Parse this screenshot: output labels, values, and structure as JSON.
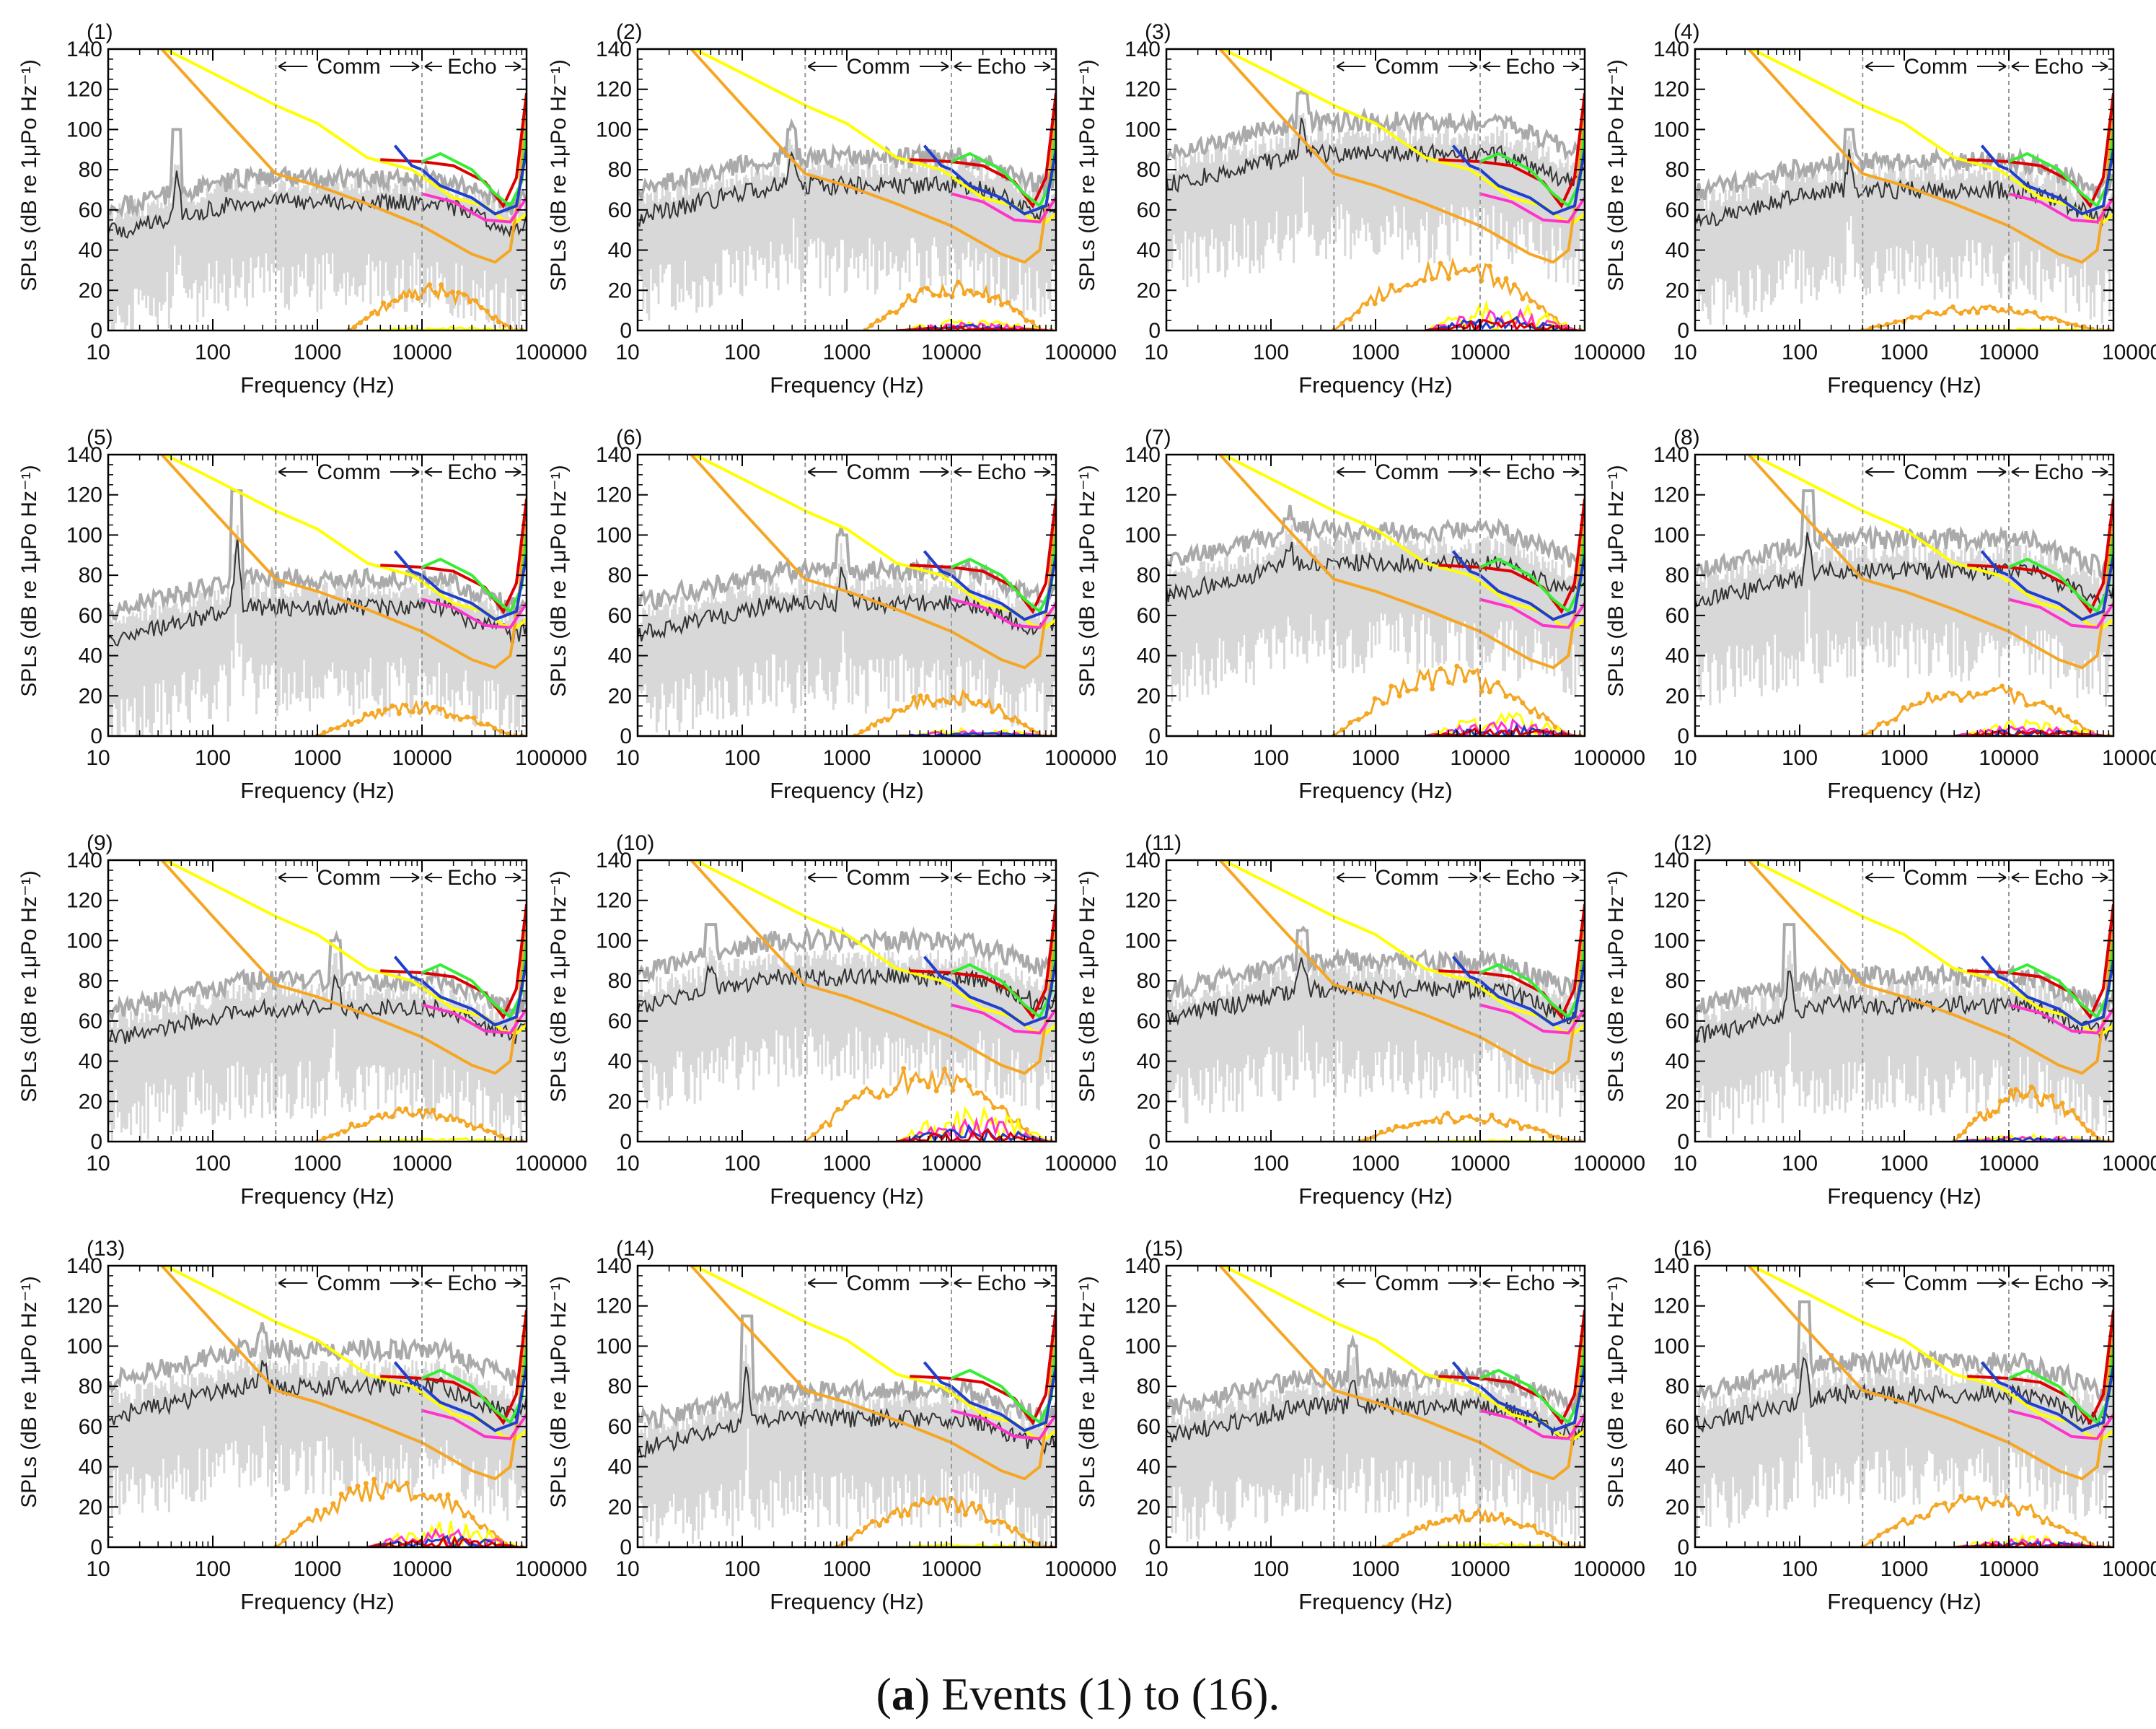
{
  "figure_caption": {
    "label": "(a)",
    "letter": "a",
    "text": "Events (1) to (16)."
  },
  "colors": {
    "frame": "#000000",
    "spread_fill": "#d8d8d8",
    "upper_gray": "#aaaaaa",
    "median_black": "#333333",
    "yellow": "#ffff00",
    "orange": "#f5a623",
    "red": "#dd0000",
    "green": "#33ee33",
    "blue": "#1f3fcc",
    "magenta": "#ff33cc",
    "marker_line": "#999999"
  },
  "shared_axes": {
    "xlabel": "Frequency (Hz)",
    "ylabel": "SPLs (dB re 1μPo Hz⁻¹)",
    "xscale": "log",
    "xlim": [
      10,
      100000
    ],
    "ylim": [
      0,
      140
    ],
    "x_ticks": [
      10,
      100,
      1000,
      10000,
      100000
    ],
    "x_tick_labels": [
      "10",
      "100",
      "1000",
      "10000",
      "100000"
    ],
    "y_ticks": [
      0,
      20,
      40,
      60,
      80,
      100,
      120,
      140
    ],
    "y_tick_labels": [
      "0",
      "20",
      "40",
      "60",
      "80",
      "100",
      "120",
      "140"
    ],
    "band_markers": [
      400,
      10000
    ],
    "band_label_comm": "Comm",
    "band_label_echo": "Echo"
  },
  "chart_data": [
    {
      "type": "line",
      "title": "(1)",
      "event": 1,
      "median_level": 64,
      "upper_offset": 12,
      "lf_peak": {
        "f": 45,
        "db": 100
      },
      "exceed_peak": 22,
      "exceed_start": 2000,
      "colored_exceed": 2
    },
    {
      "type": "line",
      "title": "(2)",
      "event": 2,
      "median_level": 72,
      "upper_offset": 14,
      "lf_peak": {
        "f": 300,
        "db": 100
      },
      "exceed_peak": 24,
      "exceed_start": 1500,
      "colored_exceed": 6
    },
    {
      "type": "line",
      "title": "(3)",
      "event": 3,
      "median_level": 88,
      "upper_offset": 16,
      "lf_peak": {
        "f": 200,
        "db": 118
      },
      "exceed_peak": 36,
      "exceed_start": 400,
      "colored_exceed": 16
    },
    {
      "type": "line",
      "title": "(4)",
      "event": 4,
      "median_level": 70,
      "upper_offset": 14,
      "lf_peak": {
        "f": 300,
        "db": 100
      },
      "exceed_peak": 12,
      "exceed_start": 400,
      "colored_exceed": 1
    },
    {
      "type": "line",
      "title": "(5)",
      "event": 5,
      "median_level": 64,
      "upper_offset": 14,
      "lf_peak": {
        "f": 170,
        "db": 122
      },
      "exceed_peak": 16,
      "exceed_start": 1000,
      "colored_exceed": 0
    },
    {
      "type": "line",
      "title": "(6)",
      "event": 6,
      "median_level": 66,
      "upper_offset": 16,
      "lf_peak": {
        "f": 900,
        "db": 100
      },
      "exceed_peak": 22,
      "exceed_start": 1200,
      "colored_exceed": 4
    },
    {
      "type": "line",
      "title": "(7)",
      "event": 7,
      "median_level": 86,
      "upper_offset": 16,
      "lf_peak": {
        "f": 150,
        "db": 108
      },
      "exceed_peak": 34,
      "exceed_start": 400,
      "colored_exceed": 12
    },
    {
      "type": "line",
      "title": "(8)",
      "event": 8,
      "median_level": 82,
      "upper_offset": 16,
      "lf_peak": {
        "f": 120,
        "db": 122
      },
      "exceed_peak": 26,
      "exceed_start": 400,
      "colored_exceed": 8
    },
    {
      "type": "line",
      "title": "(9)",
      "event": 9,
      "median_level": 66,
      "upper_offset": 14,
      "lf_peak": {
        "f": 1500,
        "db": 100
      },
      "exceed_peak": 16,
      "exceed_start": 1000,
      "colored_exceed": 2
    },
    {
      "type": "line",
      "title": "(10)",
      "event": 10,
      "median_level": 82,
      "upper_offset": 18,
      "lf_peak": {
        "f": 50,
        "db": 108
      },
      "exceed_peak": 36,
      "exceed_start": 400,
      "colored_exceed": 18
    },
    {
      "type": "line",
      "title": "(11)",
      "event": 11,
      "median_level": 76,
      "upper_offset": 14,
      "lf_peak": {
        "f": 200,
        "db": 105
      },
      "exceed_peak": 14,
      "exceed_start": 700,
      "colored_exceed": 1
    },
    {
      "type": "line",
      "title": "(12)",
      "event": 12,
      "median_level": 68,
      "upper_offset": 14,
      "lf_peak": {
        "f": 80,
        "db": 108
      },
      "exceed_peak": 26,
      "exceed_start": 3000,
      "colored_exceed": 4
    },
    {
      "type": "line",
      "title": "(13)",
      "event": 13,
      "median_level": 80,
      "upper_offset": 18,
      "lf_peak": {
        "f": 300,
        "db": 106
      },
      "exceed_peak": 34,
      "exceed_start": 400,
      "colored_exceed": 14
    },
    {
      "type": "line",
      "title": "(14)",
      "event": 14,
      "median_level": 64,
      "upper_offset": 14,
      "lf_peak": {
        "f": 110,
        "db": 115
      },
      "exceed_peak": 24,
      "exceed_start": 800,
      "colored_exceed": 2
    },
    {
      "type": "line",
      "title": "(15)",
      "event": 15,
      "median_level": 70,
      "upper_offset": 14,
      "lf_peak": {
        "f": 600,
        "db": 100
      },
      "exceed_peak": 18,
      "exceed_start": 1200,
      "colored_exceed": 2
    },
    {
      "type": "line",
      "title": "(16)",
      "event": 16,
      "median_level": 76,
      "upper_offset": 16,
      "lf_peak": {
        "f": 110,
        "db": 122
      },
      "exceed_peak": 26,
      "exceed_start": 400,
      "colored_exceed": 6
    }
  ],
  "threshold_curves": {
    "yellow": [
      [
        35,
        140
      ],
      [
        100,
        128
      ],
      [
        400,
        112
      ],
      [
        1000,
        103
      ],
      [
        3000,
        86
      ],
      [
        8000,
        80
      ],
      [
        20000,
        66
      ],
      [
        40000,
        62
      ],
      [
        60000,
        55
      ],
      [
        80000,
        54
      ],
      [
        100000,
        58
      ]
    ],
    "orange": [
      [
        30,
        142
      ],
      [
        100,
        112
      ],
      [
        400,
        78
      ],
      [
        1000,
        72
      ],
      [
        3000,
        63
      ],
      [
        10000,
        52
      ],
      [
        30000,
        38
      ],
      [
        50000,
        34
      ],
      [
        70000,
        40
      ],
      [
        85000,
        70
      ],
      [
        100000,
        118
      ]
    ],
    "red": [
      [
        4000,
        85
      ],
      [
        10000,
        84
      ],
      [
        20000,
        82
      ],
      [
        40000,
        74
      ],
      [
        60000,
        62
      ],
      [
        80000,
        76
      ],
      [
        100000,
        118
      ]
    ],
    "green": [
      [
        10000,
        84
      ],
      [
        15000,
        88
      ],
      [
        30000,
        80
      ],
      [
        50000,
        68
      ],
      [
        70000,
        62
      ],
      [
        90000,
        74
      ],
      [
        100000,
        100
      ]
    ],
    "blue": [
      [
        5500,
        92
      ],
      [
        8000,
        82
      ],
      [
        10000,
        80
      ],
      [
        15000,
        72
      ],
      [
        30000,
        66
      ],
      [
        50000,
        58
      ],
      [
        80000,
        62
      ],
      [
        100000,
        90
      ]
    ],
    "magenta": [
      [
        10000,
        68
      ],
      [
        20000,
        64
      ],
      [
        40000,
        55
      ],
      [
        70000,
        54
      ],
      [
        100000,
        66
      ]
    ]
  }
}
